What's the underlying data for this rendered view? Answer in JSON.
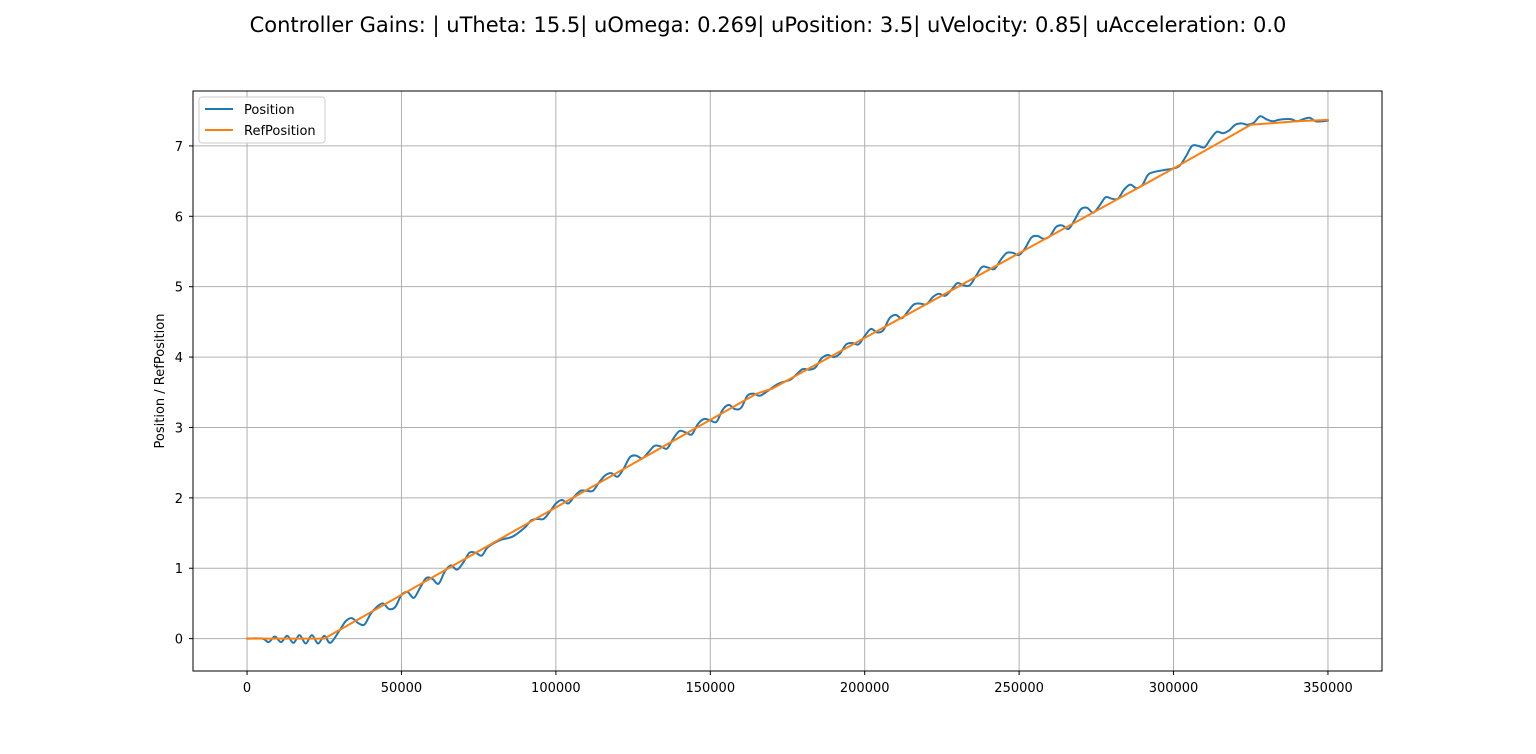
{
  "chart_data": {
    "type": "line",
    "title": "Controller Gains: | uTheta: 15.5| uOmega: 0.269| uPosition: 3.5| uVelocity: 0.85| uAcceleration: 0.0",
    "xlabel": "",
    "ylabel": "Position / RefPosition",
    "xlim": [
      -17500,
      367500
    ],
    "ylim": [
      -0.46,
      7.78
    ],
    "xticks": [
      0,
      50000,
      100000,
      150000,
      200000,
      250000,
      300000,
      350000
    ],
    "xtick_labels": [
      "0",
      "50000",
      "100000",
      "150000",
      "200000",
      "250000",
      "300000",
      "350000"
    ],
    "yticks": [
      0,
      1,
      2,
      3,
      4,
      5,
      6,
      7
    ],
    "ytick_labels": [
      "0",
      "1",
      "2",
      "3",
      "4",
      "5",
      "6",
      "7"
    ],
    "grid": true,
    "legend": {
      "placement": "upper-left"
    },
    "series": [
      {
        "name": "Position",
        "color": "#1f77b4",
        "x": [
          0,
          5000,
          7000,
          9000,
          11000,
          13000,
          15000,
          17000,
          19000,
          21000,
          23000,
          25000,
          27000,
          30000,
          32000,
          34000,
          36000,
          38000,
          40000,
          42000,
          44000,
          46000,
          48000,
          50000,
          52000,
          54000,
          56000,
          58000,
          60000,
          62000,
          64000,
          66000,
          68000,
          70000,
          72000,
          74000,
          76000,
          78000,
          82000,
          86000,
          90000,
          92000,
          94000,
          96000,
          98000,
          100000,
          102000,
          104000,
          106000,
          108000,
          110000,
          112000,
          114000,
          116000,
          118000,
          120000,
          122000,
          124000,
          126000,
          128000,
          130000,
          132000,
          134000,
          136000,
          138000,
          140000,
          142000,
          144000,
          146000,
          148000,
          150000,
          152000,
          154000,
          156000,
          158000,
          160000,
          162000,
          164000,
          166000,
          168000,
          172000,
          176000,
          178000,
          180000,
          182000,
          184000,
          186000,
          188000,
          190000,
          192000,
          194000,
          196000,
          198000,
          200000,
          202000,
          204000,
          206000,
          208000,
          210000,
          212000,
          214000,
          216000,
          218000,
          220000,
          222000,
          224000,
          226000,
          228000,
          230000,
          232000,
          234000,
          236000,
          238000,
          240000,
          242000,
          244000,
          246000,
          248000,
          250000,
          252000,
          254000,
          256000,
          258000,
          260000,
          262000,
          264000,
          266000,
          268000,
          270000,
          272000,
          274000,
          276000,
          278000,
          280000,
          282000,
          284000,
          286000,
          288000,
          290000,
          292000,
          296000,
          300000,
          302000,
          304000,
          306000,
          308000,
          310000,
          312000,
          314000,
          316000,
          318000,
          320000,
          322000,
          324000,
          326000,
          328000,
          330000,
          332000,
          334000,
          336000,
          338000,
          340000,
          342000,
          344000,
          346000,
          348000,
          350000
        ],
        "y": [
          0.0,
          0.0,
          -0.05,
          0.03,
          -0.05,
          0.04,
          -0.06,
          0.05,
          -0.07,
          0.05,
          -0.07,
          0.04,
          -0.06,
          0.12,
          0.25,
          0.29,
          0.22,
          0.2,
          0.35,
          0.45,
          0.5,
          0.42,
          0.45,
          0.62,
          0.66,
          0.58,
          0.72,
          0.86,
          0.85,
          0.78,
          0.95,
          1.04,
          0.98,
          1.08,
          1.22,
          1.22,
          1.18,
          1.3,
          1.4,
          1.45,
          1.58,
          1.68,
          1.7,
          1.7,
          1.8,
          1.92,
          1.97,
          1.92,
          2.02,
          2.1,
          2.1,
          2.1,
          2.22,
          2.32,
          2.35,
          2.3,
          2.42,
          2.58,
          2.6,
          2.56,
          2.65,
          2.74,
          2.73,
          2.7,
          2.84,
          2.95,
          2.93,
          2.9,
          3.05,
          3.12,
          3.1,
          3.08,
          3.25,
          3.32,
          3.26,
          3.28,
          3.45,
          3.48,
          3.45,
          3.5,
          3.62,
          3.68,
          3.76,
          3.83,
          3.82,
          3.85,
          3.98,
          4.03,
          4.0,
          4.05,
          4.18,
          4.2,
          4.18,
          4.3,
          4.4,
          4.35,
          4.38,
          4.55,
          4.6,
          4.55,
          4.65,
          4.75,
          4.76,
          4.75,
          4.85,
          4.9,
          4.87,
          4.95,
          5.05,
          5.02,
          5.02,
          5.15,
          5.28,
          5.27,
          5.25,
          5.38,
          5.48,
          5.48,
          5.45,
          5.55,
          5.7,
          5.72,
          5.68,
          5.72,
          5.85,
          5.87,
          5.82,
          5.95,
          6.1,
          6.12,
          6.05,
          6.15,
          6.27,
          6.25,
          6.25,
          6.38,
          6.45,
          6.4,
          6.45,
          6.6,
          6.65,
          6.68,
          6.72,
          6.85,
          7.0,
          7.0,
          6.98,
          7.1,
          7.2,
          7.18,
          7.22,
          7.3,
          7.32,
          7.3,
          7.33,
          7.42,
          7.38,
          7.35,
          7.37,
          7.38,
          7.38,
          7.35,
          7.38,
          7.4,
          7.35,
          7.35,
          7.36
        ]
      },
      {
        "name": "RefPosition",
        "color": "#ff7f0e",
        "x": [
          0,
          25000,
          165000,
          170000,
          300000,
          325000,
          340000,
          350000
        ],
        "y": [
          0.0,
          0.0,
          3.48,
          3.55,
          6.68,
          7.3,
          7.35,
          7.37
        ]
      }
    ]
  }
}
